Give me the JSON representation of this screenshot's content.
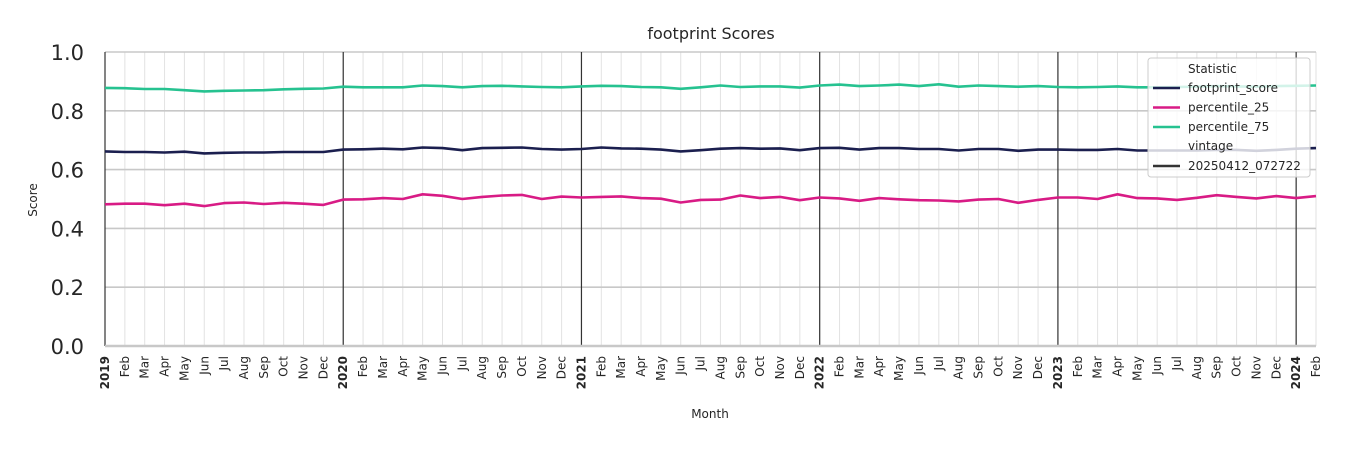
{
  "chart_data": {
    "type": "line",
    "title": "footprint Scores",
    "xlabel": "Month",
    "ylabel": "Score",
    "ylim": [
      0.0,
      1.0
    ],
    "yticks": [
      "0.0",
      "0.2",
      "0.4",
      "0.6",
      "0.8",
      "1.0"
    ],
    "grid": true,
    "legend_position": "upper right",
    "x": [
      "2019-01",
      "2019-02",
      "2019-03",
      "2019-04",
      "2019-05",
      "2019-06",
      "2019-07",
      "2019-08",
      "2019-09",
      "2019-10",
      "2019-11",
      "2019-12",
      "2020-01",
      "2020-02",
      "2020-03",
      "2020-04",
      "2020-05",
      "2020-06",
      "2020-07",
      "2020-08",
      "2020-09",
      "2020-10",
      "2020-11",
      "2020-12",
      "2021-01",
      "2021-02",
      "2021-03",
      "2021-04",
      "2021-05",
      "2021-06",
      "2021-07",
      "2021-08",
      "2021-09",
      "2021-10",
      "2021-11",
      "2021-12",
      "2022-01",
      "2022-02",
      "2022-03",
      "2022-04",
      "2022-05",
      "2022-06",
      "2022-07",
      "2022-08",
      "2022-09",
      "2022-10",
      "2022-11",
      "2022-12",
      "2023-01",
      "2023-02",
      "2023-03",
      "2023-04",
      "2023-05",
      "2023-06",
      "2023-07",
      "2023-08",
      "2023-09",
      "2023-10",
      "2023-11",
      "2023-12",
      "2024-01",
      "2024-02"
    ],
    "xtick_labels": [
      "2019",
      "Feb",
      "Mar",
      "Apr",
      "May",
      "Jun",
      "Jul",
      "Aug",
      "Sep",
      "Oct",
      "Nov",
      "Dec",
      "2020",
      "Feb",
      "Mar",
      "Apr",
      "May",
      "Jun",
      "Jul",
      "Aug",
      "Sep",
      "Oct",
      "Nov",
      "Dec",
      "2021",
      "Feb",
      "Mar",
      "Apr",
      "May",
      "Jun",
      "Jul",
      "Aug",
      "Sep",
      "Oct",
      "Nov",
      "Dec",
      "2022",
      "Feb",
      "Mar",
      "Apr",
      "May",
      "Jun",
      "Jul",
      "Aug",
      "Sep",
      "Oct",
      "Nov",
      "Dec",
      "2023",
      "Feb",
      "Mar",
      "Apr",
      "May",
      "Jun",
      "Jul",
      "Aug",
      "Sep",
      "Oct",
      "Nov",
      "Dec",
      "2024",
      "Feb"
    ],
    "year_markers": [
      "2020",
      "2021",
      "2022",
      "2023",
      "2024"
    ],
    "series": [
      {
        "name": "footprint_score",
        "color": "#1b1f4f",
        "values": [
          0.662,
          0.66,
          0.66,
          0.658,
          0.661,
          0.655,
          0.657,
          0.658,
          0.658,
          0.66,
          0.66,
          0.66,
          0.668,
          0.669,
          0.671,
          0.669,
          0.675,
          0.673,
          0.666,
          0.673,
          0.674,
          0.675,
          0.67,
          0.668,
          0.67,
          0.675,
          0.672,
          0.671,
          0.668,
          0.662,
          0.666,
          0.671,
          0.673,
          0.671,
          0.672,
          0.666,
          0.673,
          0.674,
          0.668,
          0.673,
          0.673,
          0.67,
          0.67,
          0.665,
          0.67,
          0.67,
          0.664,
          0.668,
          0.668,
          0.667,
          0.667,
          0.67,
          0.665,
          0.665,
          0.665,
          0.665,
          0.667,
          0.667,
          0.664,
          0.667,
          0.671,
          0.673
        ]
      },
      {
        "name": "percentile_25",
        "color": "#d81b85",
        "values": [
          0.482,
          0.484,
          0.484,
          0.479,
          0.484,
          0.476,
          0.486,
          0.488,
          0.483,
          0.487,
          0.484,
          0.48,
          0.498,
          0.499,
          0.503,
          0.5,
          0.516,
          0.511,
          0.5,
          0.507,
          0.512,
          0.514,
          0.5,
          0.508,
          0.505,
          0.507,
          0.509,
          0.503,
          0.501,
          0.488,
          0.497,
          0.498,
          0.512,
          0.503,
          0.507,
          0.496,
          0.505,
          0.502,
          0.494,
          0.503,
          0.499,
          0.496,
          0.495,
          0.492,
          0.498,
          0.5,
          0.487,
          0.497,
          0.505,
          0.505,
          0.5,
          0.516,
          0.503,
          0.502,
          0.497,
          0.504,
          0.513,
          0.507,
          0.502,
          0.51,
          0.503,
          0.51
        ]
      },
      {
        "name": "percentile_75",
        "color": "#26c290",
        "values": [
          0.878,
          0.877,
          0.874,
          0.874,
          0.87,
          0.866,
          0.868,
          0.869,
          0.87,
          0.873,
          0.875,
          0.876,
          0.882,
          0.88,
          0.88,
          0.88,
          0.886,
          0.884,
          0.88,
          0.884,
          0.885,
          0.883,
          0.881,
          0.88,
          0.883,
          0.885,
          0.884,
          0.881,
          0.88,
          0.875,
          0.88,
          0.886,
          0.881,
          0.883,
          0.883,
          0.879,
          0.886,
          0.889,
          0.884,
          0.886,
          0.889,
          0.884,
          0.89,
          0.882,
          0.886,
          0.884,
          0.882,
          0.884,
          0.881,
          0.88,
          0.881,
          0.883,
          0.88,
          0.88,
          0.881,
          0.882,
          0.884,
          0.883,
          0.882,
          0.884,
          0.885,
          0.886
        ]
      }
    ],
    "vintage_lines": {
      "name": "20250412_072722",
      "color": "#333333"
    }
  },
  "legend": {
    "title": "Statistic",
    "items": [
      {
        "label": "footprint_score",
        "color": "#1b1f4f"
      },
      {
        "label": "percentile_25",
        "color": "#d81b85"
      },
      {
        "label": "percentile_75",
        "color": "#26c290"
      }
    ],
    "subtitle": "vintage",
    "vintage_items": [
      {
        "label": "20250412_072722",
        "color": "#333333"
      }
    ]
  }
}
